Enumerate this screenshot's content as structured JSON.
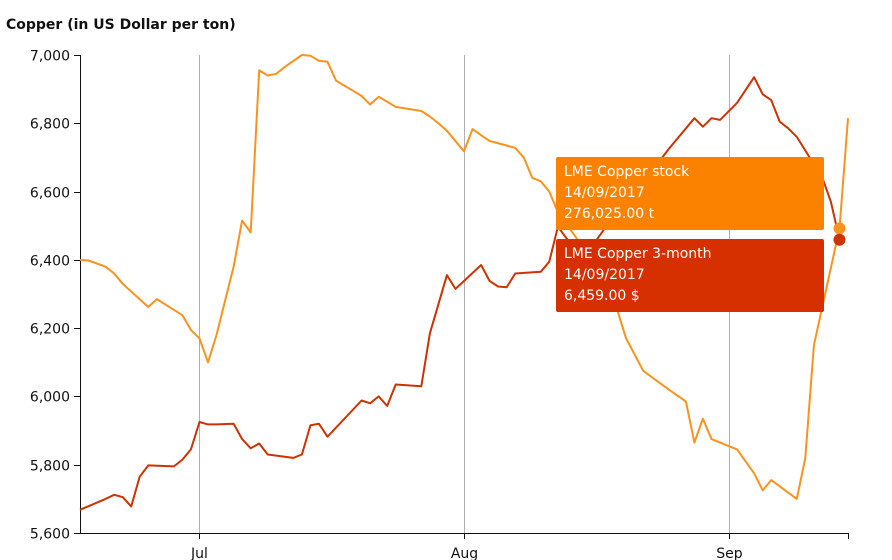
{
  "chart_data": {
    "type": "line",
    "title": "Copper (in US Dollar per ton)",
    "ylim": [
      5600,
      7000
    ],
    "y_ticks": [
      "5,600",
      "5,800",
      "6,000",
      "6,200",
      "6,400",
      "6,600",
      "6,800",
      "7,000"
    ],
    "y_tick_values": [
      5600,
      5800,
      6000,
      6200,
      6400,
      6600,
      6800,
      7000
    ],
    "x_range": [
      "2017-06-17",
      "2017-09-15"
    ],
    "x_ticks": [
      {
        "label": "Jul",
        "date": "2017-07-01"
      },
      {
        "label": "Aug",
        "date": "2017-08-01"
      },
      {
        "label": "Sep",
        "date": "2017-09-01"
      }
    ],
    "grid": "vertical at month ticks",
    "series": [
      {
        "name": "LME Copper stock",
        "color": "#F7931E",
        "points": [
          [
            "2017-06-17",
            6400
          ],
          [
            "2017-06-18",
            6398
          ],
          [
            "2017-06-20",
            6380
          ],
          [
            "2017-06-21",
            6360
          ],
          [
            "2017-06-22",
            6330
          ],
          [
            "2017-06-25",
            6262
          ],
          [
            "2017-06-26",
            6285
          ],
          [
            "2017-06-29",
            6238
          ],
          [
            "2017-06-30",
            6195
          ],
          [
            "2017-07-01",
            6170
          ],
          [
            "2017-07-02",
            6100
          ],
          [
            "2017-07-03",
            6180
          ],
          [
            "2017-07-05",
            6380
          ],
          [
            "2017-07-06",
            6515
          ],
          [
            "2017-07-07",
            6480
          ],
          [
            "2017-07-08",
            6955
          ],
          [
            "2017-07-09",
            6940
          ],
          [
            "2017-07-10",
            6945
          ],
          [
            "2017-07-11",
            6965
          ],
          [
            "2017-07-13",
            7000
          ],
          [
            "2017-07-14",
            6998
          ],
          [
            "2017-07-15",
            6983
          ],
          [
            "2017-07-16",
            6980
          ],
          [
            "2017-07-17",
            6925
          ],
          [
            "2017-07-19",
            6895
          ],
          [
            "2017-07-20",
            6880
          ],
          [
            "2017-07-21",
            6855
          ],
          [
            "2017-07-22",
            6878
          ],
          [
            "2017-07-24",
            6848
          ],
          [
            "2017-07-27",
            6836
          ],
          [
            "2017-07-28",
            6820
          ],
          [
            "2017-07-29",
            6800
          ],
          [
            "2017-07-30",
            6778
          ],
          [
            "2017-08-01",
            6718
          ],
          [
            "2017-08-02",
            6783
          ],
          [
            "2017-08-03",
            6765
          ],
          [
            "2017-08-04",
            6748
          ],
          [
            "2017-08-06",
            6735
          ],
          [
            "2017-08-07",
            6728
          ],
          [
            "2017-08-08",
            6700
          ],
          [
            "2017-08-09",
            6640
          ],
          [
            "2017-08-10",
            6630
          ],
          [
            "2017-08-11",
            6600
          ],
          [
            "2017-08-12",
            6540
          ],
          [
            "2017-08-18",
            6330
          ],
          [
            "2017-08-20",
            6170
          ],
          [
            "2017-08-22",
            6075
          ],
          [
            "2017-08-25",
            6020
          ],
          [
            "2017-08-27",
            5985
          ],
          [
            "2017-08-28",
            5865
          ],
          [
            "2017-08-29",
            5935
          ],
          [
            "2017-08-30",
            5875
          ],
          [
            "2017-09-02",
            5845
          ],
          [
            "2017-09-04",
            5775
          ],
          [
            "2017-09-05",
            5725
          ],
          [
            "2017-09-06",
            5755
          ],
          [
            "2017-09-09",
            5700
          ],
          [
            "2017-09-10",
            5820
          ],
          [
            "2017-09-11",
            6150
          ],
          [
            "2017-09-14",
            6492
          ],
          [
            "2017-09-15",
            6815
          ]
        ]
      },
      {
        "name": "LME Copper 3-month",
        "color": "#CC3300",
        "points": [
          [
            "2017-06-17",
            5668
          ],
          [
            "2017-06-20",
            5700
          ],
          [
            "2017-06-21",
            5712
          ],
          [
            "2017-06-22",
            5705
          ],
          [
            "2017-06-23",
            5678
          ],
          [
            "2017-06-24",
            5765
          ],
          [
            "2017-06-25",
            5798
          ],
          [
            "2017-06-28",
            5795
          ],
          [
            "2017-06-29",
            5815
          ],
          [
            "2017-06-30",
            5845
          ],
          [
            "2017-07-01",
            5925
          ],
          [
            "2017-07-02",
            5918
          ],
          [
            "2017-07-03",
            5918
          ],
          [
            "2017-07-05",
            5920
          ],
          [
            "2017-07-06",
            5875
          ],
          [
            "2017-07-07",
            5848
          ],
          [
            "2017-07-08",
            5862
          ],
          [
            "2017-07-09",
            5830
          ],
          [
            "2017-07-12",
            5820
          ],
          [
            "2017-07-13",
            5830
          ],
          [
            "2017-07-14",
            5915
          ],
          [
            "2017-07-15",
            5920
          ],
          [
            "2017-07-16",
            5882
          ],
          [
            "2017-07-20",
            5988
          ],
          [
            "2017-07-21",
            5980
          ],
          [
            "2017-07-22",
            6000
          ],
          [
            "2017-07-23",
            5972
          ],
          [
            "2017-07-24",
            6035
          ],
          [
            "2017-07-27",
            6030
          ],
          [
            "2017-07-28",
            6185
          ],
          [
            "2017-07-30",
            6355
          ],
          [
            "2017-07-31",
            6315
          ],
          [
            "2017-08-03",
            6385
          ],
          [
            "2017-08-04",
            6338
          ],
          [
            "2017-08-05",
            6322
          ],
          [
            "2017-08-06",
            6320
          ],
          [
            "2017-08-07",
            6360
          ],
          [
            "2017-08-10",
            6365
          ],
          [
            "2017-08-11",
            6395
          ],
          [
            "2017-08-12",
            6497
          ],
          [
            "2017-08-14",
            6430
          ],
          [
            "2017-08-15",
            6405
          ],
          [
            "2017-08-18",
            6510
          ],
          [
            "2017-08-20",
            6560
          ],
          [
            "2017-08-25",
            6725
          ],
          [
            "2017-08-28",
            6815
          ],
          [
            "2017-08-29",
            6790
          ],
          [
            "2017-08-30",
            6815
          ],
          [
            "2017-08-31",
            6810
          ],
          [
            "2017-09-02",
            6860
          ],
          [
            "2017-09-04",
            6935
          ],
          [
            "2017-09-05",
            6885
          ],
          [
            "2017-09-06",
            6868
          ],
          [
            "2017-09-07",
            6805
          ],
          [
            "2017-09-08",
            6785
          ],
          [
            "2017-09-09",
            6760
          ],
          [
            "2017-09-12",
            6640
          ],
          [
            "2017-09-13",
            6570
          ],
          [
            "2017-09-14",
            6459
          ]
        ]
      }
    ],
    "tooltips": [
      {
        "series": "LME Copper stock",
        "date": "14/09/2017",
        "value": "276,025.00 t",
        "color": "#FB8200"
      },
      {
        "series": "LME Copper 3-month",
        "date": "14/09/2017",
        "value": "6,459.00 $",
        "color": "#D62F00"
      }
    ],
    "hover_date": "2017-09-14",
    "hover_values": {
      "LME Copper stock": 6492,
      "LME Copper 3-month": 6459
    }
  }
}
